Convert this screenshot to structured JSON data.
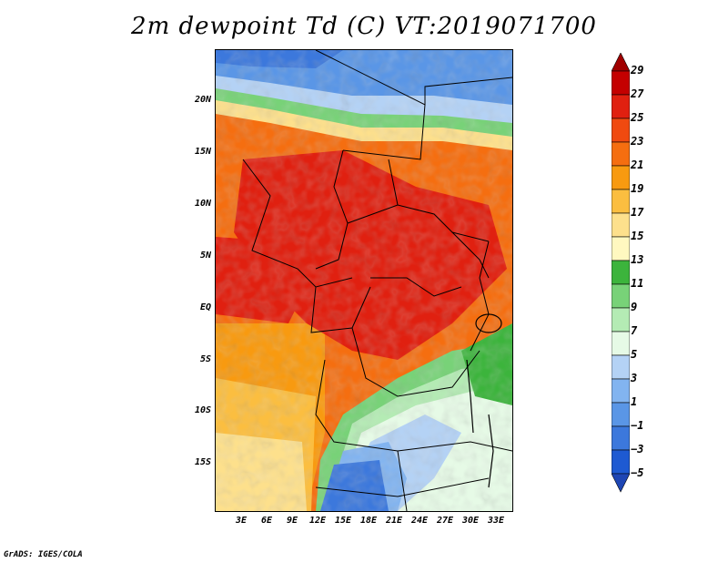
{
  "title": "2m dewpoint Td (C) VT:2019071700",
  "credit": "GrADS: IGES/COLA",
  "lat_ticks": [
    "20N",
    "15N",
    "10N",
    "5N",
    "EQ",
    "5S",
    "10S",
    "15S"
  ],
  "lon_ticks": [
    "3E",
    "6E",
    "9E",
    "12E",
    "15E",
    "18E",
    "21E",
    "24E",
    "27E",
    "30E",
    "33E"
  ],
  "colorbar": {
    "labels": [
      "29",
      "27",
      "25",
      "23",
      "21",
      "19",
      "17",
      "15",
      "13",
      "11",
      "9",
      "7",
      "5",
      "3",
      "1",
      "−1",
      "−3",
      "−5"
    ],
    "colors": [
      "#a00000",
      "#c40000",
      "#e02010",
      "#f04a10",
      "#f56e10",
      "#f89a10",
      "#fbbe40",
      "#fde08c",
      "#fff8c0",
      "#3cb43c",
      "#78d278",
      "#b4ebb4",
      "#e6fae6",
      "#b4d2f5",
      "#82b4f0",
      "#5a96e6",
      "#3c78dc",
      "#1e5ad2",
      "#1e46b4"
    ]
  }
}
